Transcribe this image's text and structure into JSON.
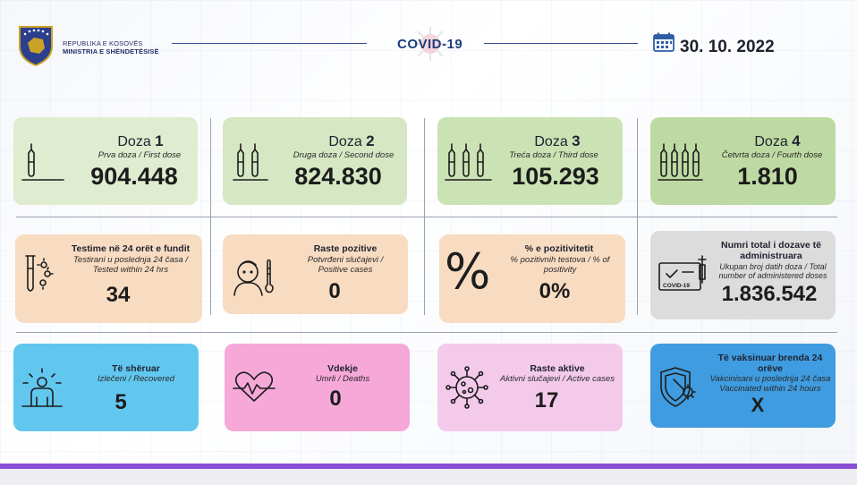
{
  "header": {
    "ministry_line1": "REPUBLIKA E KOSOVËS",
    "ministry_line2": "MINISTRIA E SHËNDETËSISË",
    "title": "COVID-19",
    "date": "30. 10. 2022"
  },
  "doses": [
    {
      "title_word": "Doza",
      "title_num": "1",
      "subtitle": "Prva doza / First dose",
      "value": "904.448"
    },
    {
      "title_word": "Doza",
      "title_num": "2",
      "subtitle": "Druga doza / Second dose",
      "value": "824.830"
    },
    {
      "title_word": "Doza",
      "title_num": "3",
      "subtitle": "Treća doza / Third dose",
      "value": "105.293"
    },
    {
      "title_word": "Doza",
      "title_num": "4",
      "subtitle": "Četvrta doza / Fourth dose",
      "value": "1.810"
    }
  ],
  "stats_row2": [
    {
      "title": "Testime në 24 orët e fundit",
      "subtitle": "Testirani u poslednja 24 časa / Tested within 24 hrs",
      "value": "34"
    },
    {
      "title": "Raste pozitive",
      "subtitle": "Potvrđeni slučajevi / Positive cases",
      "value": "0"
    },
    {
      "title": "% e pozitivitetit",
      "subtitle": "% pozitivnih testova / % of positivity",
      "value": "0%"
    },
    {
      "title": "Numri total i dozave të administruara",
      "subtitle": "Ukupan broj datih doza / Total number of administered doses",
      "value": "1.836.542"
    }
  ],
  "stats_row3": [
    {
      "title": "Të shëruar",
      "subtitle": "Izlečeni / Recovered",
      "value": "5"
    },
    {
      "title": "Vdekje",
      "subtitle": "Umrli / Deaths",
      "value": "0"
    },
    {
      "title": "Raste aktive",
      "subtitle": "Aktivni slučajevi / Active cases",
      "value": "17"
    },
    {
      "title": "Të vaksinuar brenda 24 orëve",
      "subtitle": "Vakcinisani u poslednja 24 časa Vaccinated within 24 hours",
      "value": "X"
    }
  ],
  "icons": {
    "logo": "kosovo-coat-of-arms",
    "date": "calendar-icon",
    "dose1": "vial-1-icon",
    "dose2": "vial-2-icon",
    "dose3": "vial-3-icon",
    "dose4": "vial-4-icon",
    "tests": "test-tube-icon",
    "positive": "thermometer-person-icon",
    "positivity": "percent-icon",
    "total_doses": "vaccine-certificate-icon",
    "recovered": "recovered-person-icon",
    "deaths": "heartbeat-icon",
    "active": "virus-icon",
    "vaccinated": "vaccine-shield-icon"
  },
  "colors": {
    "dose1": "#dfeccf",
    "dose2": "#d6e7c3",
    "dose3": "#cbe2b4",
    "dose4": "#bedaa3",
    "tests": "#f8dcc2",
    "total": "#dcdcdc",
    "recovered": "#62c7ef",
    "deaths": "#f6a8d9",
    "active": "#f3caea",
    "vaccinated": "#3f9ce0",
    "bottom_bar": "#8a4fd6",
    "header_text": "#1d3f7a"
  }
}
